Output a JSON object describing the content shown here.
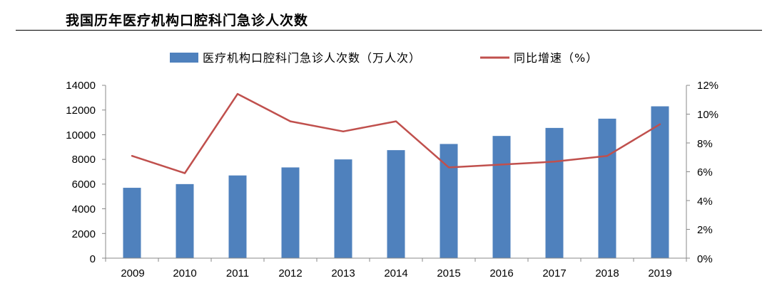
{
  "header": {
    "title": "我国历年医疗机构口腔科门急诊人次数"
  },
  "chart_data": {
    "type": "bar",
    "categories": [
      "2009",
      "2010",
      "2011",
      "2012",
      "2013",
      "2014",
      "2015",
      "2016",
      "2017",
      "2018",
      "2019"
    ],
    "series": [
      {
        "name": "医疗机构口腔科门急诊人次数（万人次）",
        "type": "bar",
        "axis": "left",
        "values": [
          5700,
          6000,
          6700,
          7350,
          8000,
          8750,
          9250,
          9900,
          10550,
          11300,
          12300
        ]
      },
      {
        "name": "同比增速（%）",
        "type": "line",
        "axis": "right",
        "values": [
          7.1,
          5.9,
          11.4,
          9.5,
          8.8,
          9.5,
          6.3,
          6.5,
          6.7,
          7.1,
          9.3
        ]
      }
    ],
    "y_left": {
      "ylim": [
        0,
        14000
      ],
      "ticks": [
        "0",
        "2000",
        "4000",
        "6000",
        "8000",
        "10000",
        "12000",
        "14000"
      ]
    },
    "y_right": {
      "ylim": [
        0,
        12
      ],
      "ticks": [
        "0%",
        "2%",
        "4%",
        "6%",
        "8%",
        "10%",
        "12%"
      ]
    },
    "legend_position": "top",
    "grid": false,
    "colors": {
      "bar": "#4f81bd",
      "line": "#c0504d",
      "axis": "#888888"
    }
  }
}
